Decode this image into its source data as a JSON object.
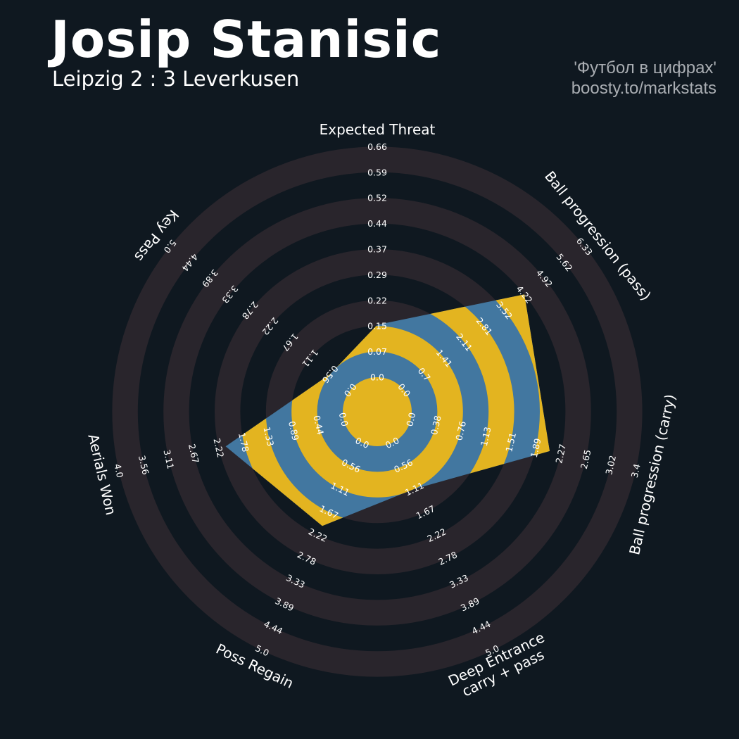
{
  "header": {
    "player_name": "Josip Stanisic",
    "match": "Leipzig 2 : 3 Leverkusen",
    "credit_line1": "'Футбол в цифрах'",
    "credit_line2": "boosty.to/markstats"
  },
  "colors": {
    "background": "#0f1820",
    "ring_band": "#29252c",
    "player_polygon": "#4277a0",
    "highlight_rings": "#e3b420",
    "text": "#ffffff",
    "credit_text": "#a9adb2"
  },
  "chart_data": {
    "type": "radar",
    "title": "Josip Stanisic",
    "subtitle": "Leipzig 2 : 3 Leverkusen",
    "params": [
      {
        "label": "Expected Threat",
        "ticks": [
          "0.0",
          "0.07",
          "0.15",
          "0.22",
          "0.29",
          "0.37",
          "0.44",
          "0.52",
          "0.59",
          "0.66"
        ],
        "min": 0.0,
        "max": 0.66,
        "value": 0.15
      },
      {
        "label": "Ball progression (pass)",
        "ticks": [
          "0.0",
          "0.7",
          "1.41",
          "2.11",
          "2.81",
          "3.52",
          "4.22",
          "4.92",
          "5.62",
          "6.33"
        ],
        "min": 0.0,
        "max": 6.33,
        "value": 4.22
      },
      {
        "label": "Ball progression (carry)",
        "ticks": [
          "0.0",
          "0.38",
          "0.76",
          "1.13",
          "1.51",
          "1.89",
          "2.27",
          "2.65",
          "3.02",
          "3.4"
        ],
        "min": 0.0,
        "max": 3.4,
        "value": 2.1
      },
      {
        "label": "Deep Entrance\ncarry + pass",
        "ticks": [
          "0.0",
          "0.56",
          "1.11",
          "1.67",
          "2.22",
          "2.78",
          "3.33",
          "3.89",
          "4.44",
          "5.0"
        ],
        "min": 0.0,
        "max": 5.0,
        "value": 1.11
      },
      {
        "label": "Poss Regain",
        "ticks": [
          "0.0",
          "0.56",
          "1.11",
          "1.67",
          "2.22",
          "2.78",
          "3.33",
          "3.89",
          "4.44",
          "5.0"
        ],
        "min": 0.0,
        "max": 5.0,
        "value": 2.0
      },
      {
        "label": "Aerials Won",
        "ticks": [
          "0.0",
          "0.44",
          "0.89",
          "1.33",
          "1.78",
          "2.22",
          "2.67",
          "3.11",
          "3.56",
          "4.0"
        ],
        "min": 0.0,
        "max": 4.0,
        "value": 2.1
      },
      {
        "label": "Key Pass",
        "ticks": [
          "0.0",
          "0.56",
          "1.11",
          "1.67",
          "2.22",
          "2.78",
          "3.33",
          "3.89",
          "4.44",
          "5.0"
        ],
        "min": 0.0,
        "max": 5.0,
        "value": 0.56
      }
    ]
  }
}
